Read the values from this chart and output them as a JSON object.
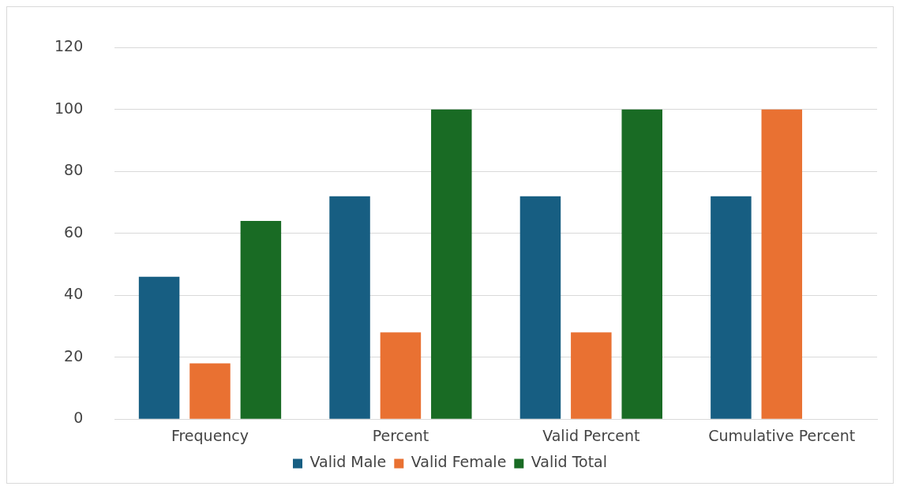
{
  "chart_data": {
    "type": "bar",
    "categories": [
      "Frequency",
      "Percent",
      "Valid Percent",
      "Cumulative Percent"
    ],
    "series": [
      {
        "name": "Valid Male",
        "color": "#175e82",
        "values": [
          46,
          72,
          72,
          72
        ]
      },
      {
        "name": "Valid Female",
        "color": "#e97132",
        "values": [
          18,
          28,
          28,
          100
        ]
      },
      {
        "name": "Valid Total",
        "color": "#196b24",
        "values": [
          64,
          100,
          100,
          null
        ]
      }
    ],
    "ylim": [
      0,
      120
    ],
    "yticks": [
      0,
      20,
      40,
      60,
      80,
      100,
      120
    ],
    "grid": "y",
    "legend": "bottom"
  }
}
